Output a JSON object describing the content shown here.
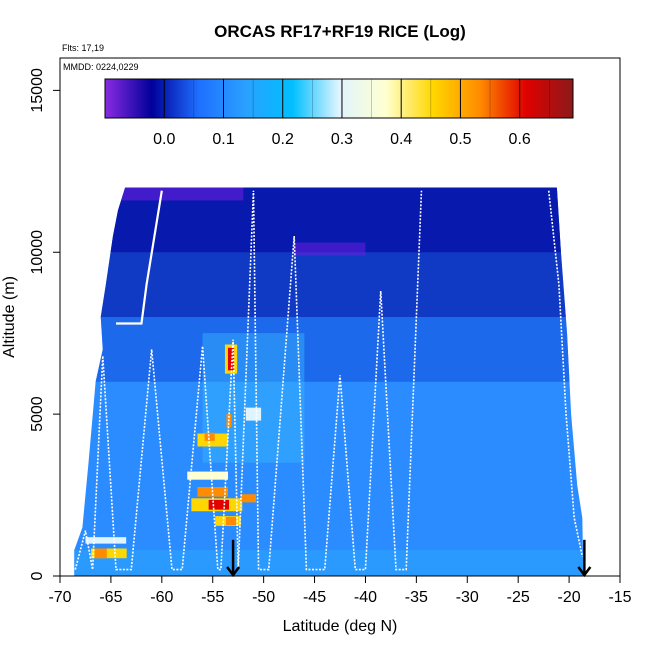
{
  "chart_data": {
    "type": "heatmap",
    "title": "ORCAS RF17+RF19 RICE (Log)",
    "annotations": [
      "Flts: 17,19",
      "MMDD: 0224,0229"
    ],
    "xlabel": "Latitude (deg N)",
    "ylabel": "Altitude (m)",
    "xlim": [
      -70,
      -15
    ],
    "ylim": [
      0,
      16000
    ],
    "x_ticks": [
      -70,
      -65,
      -60,
      -55,
      -50,
      -45,
      -40,
      -35,
      -30,
      -25,
      -20,
      -15
    ],
    "y_ticks": [
      0,
      5000,
      10000,
      15000
    ],
    "grid": false,
    "colorbar": {
      "range": [
        -0.1,
        0.69
      ],
      "ticks": [
        0.0,
        0.1,
        0.2,
        0.3,
        0.4,
        0.5,
        0.6
      ],
      "tick_labels": [
        "0.0",
        "0.1",
        "0.2",
        "0.3",
        "0.4",
        "0.5",
        "0.6"
      ],
      "placement": "top-inside",
      "colors": [
        "#8a2be2",
        "#00009a",
        "#1e6fff",
        "#2aa0ff",
        "#00bfff",
        "#e0f4ff",
        "#ffffd0",
        "#ffd700",
        "#ff8c00",
        "#e00000",
        "#8b1a1a"
      ]
    },
    "arrows": [
      {
        "x": -53.0,
        "y": 500
      },
      {
        "x": -18.5,
        "y": 500
      }
    ],
    "colors": {
      "background_field": "#2a8cff",
      "flight_track": "#ffffff",
      "low_value": "#00009a",
      "high_value": "#e00000"
    }
  }
}
